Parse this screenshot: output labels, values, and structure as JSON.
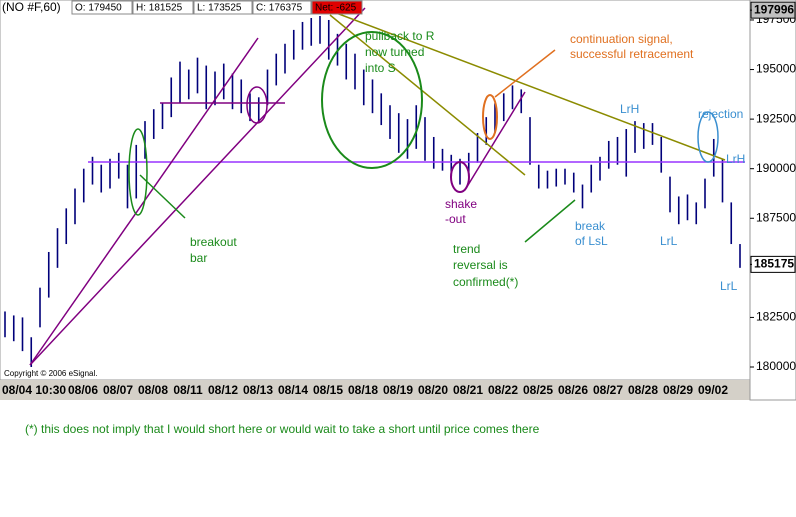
{
  "header": {
    "symbol": "(NO #F,60)",
    "open": "O: 179450",
    "high": "H: 181525",
    "low": "L: 173525",
    "close": "C: 176375",
    "net": "Net: -625"
  },
  "chart_data": {
    "type": "ohlc",
    "categories": [
      "08/04 10:30",
      null,
      null,
      null,
      null,
      null,
      null,
      null,
      "08/06",
      null,
      null,
      null,
      "08/07",
      null,
      null,
      null,
      "08/08",
      null,
      null,
      null,
      "08/11",
      null,
      null,
      null,
      "08/12",
      null,
      null,
      null,
      "08/13",
      null,
      null,
      null,
      "08/14",
      null,
      null,
      null,
      "08/15",
      null,
      null,
      null,
      "08/18",
      null,
      null,
      null,
      "08/19",
      null,
      null,
      null,
      "08/20",
      null,
      null,
      null,
      "08/21",
      null,
      null,
      null,
      "08/22",
      null,
      null,
      null,
      "08/25",
      null,
      null,
      null,
      "08/26",
      null,
      null,
      null,
      "08/27",
      null,
      null,
      null,
      "08/28",
      null,
      null,
      null,
      "08/29",
      null,
      null,
      null,
      "09/02",
      null,
      null,
      null,
      null
    ],
    "high": [
      182800,
      182600,
      182500,
      181500,
      184000,
      185800,
      187000,
      188000,
      189000,
      190000,
      190600,
      190200,
      190500,
      190800,
      190200,
      191200,
      192400,
      193000,
      193300,
      194600,
      195400,
      195000,
      195600,
      195200,
      194900,
      195300,
      194800,
      194500,
      193800,
      193600,
      195000,
      195800,
      196300,
      197000,
      197400,
      197600,
      197700,
      197500,
      196800,
      196300,
      195800,
      195000,
      194500,
      193800,
      193200,
      192800,
      192500,
      193200,
      192600,
      191600,
      191000,
      190700,
      190500,
      190800,
      191800,
      192600,
      193300,
      193800,
      194200,
      194000,
      192600,
      190200,
      189900,
      190000,
      190000,
      189800,
      189200,
      190200,
      190600,
      191400,
      191600,
      192000,
      192400,
      192300,
      192300,
      191600,
      189600,
      188600,
      188700,
      188300,
      189500,
      191500,
      190500,
      188300,
      186200
    ],
    "low": [
      181500,
      181300,
      180800,
      180000,
      182000,
      183500,
      185000,
      186200,
      187200,
      188300,
      189200,
      188800,
      189000,
      189500,
      188000,
      188500,
      190500,
      191500,
      192000,
      192600,
      193300,
      193500,
      193800,
      193000,
      193200,
      193500,
      193000,
      192800,
      192400,
      192300,
      193200,
      194200,
      194800,
      195500,
      196000,
      196200,
      196300,
      195500,
      195200,
      194500,
      194000,
      193200,
      192800,
      192200,
      191500,
      190800,
      190500,
      191000,
      190400,
      190000,
      189900,
      189600,
      189200,
      189600,
      190300,
      191200,
      191800,
      192400,
      193000,
      192800,
      190200,
      189000,
      189000,
      189100,
      189200,
      188800,
      188000,
      188800,
      189400,
      190000,
      190200,
      189600,
      190800,
      191000,
      191200,
      189800,
      187800,
      187200,
      187400,
      187200,
      188000,
      189600,
      188300,
      186200,
      185000
    ],
    "color": "#00007a",
    "ylim": [
      179344,
      198507
    ],
    "yticks": [
      180000,
      182500,
      187500,
      190000,
      192500,
      195000,
      197500
    ],
    "price_markers": [
      197996,
      185175
    ],
    "copyright": "Copyright © 2006 eSignal."
  },
  "annotations": [
    {
      "lines": [
        "pullback to R",
        "now turned",
        "into S"
      ]
    },
    {
      "lines": [
        "continuation signal,",
        "successful retracement"
      ]
    },
    {
      "lines": [
        "breakout",
        "bar"
      ]
    },
    {
      "lines": [
        "shake",
        "-out"
      ]
    },
    {
      "lines": [
        "trend",
        "reversal is",
        "confirmed(*)"
      ]
    },
    {
      "lines": [
        "break",
        "of LsL"
      ]
    },
    {
      "lines": [
        "LrH"
      ]
    },
    {
      "lines": [
        "rejection"
      ]
    },
    {
      "lines": [
        "LrH"
      ]
    },
    {
      "lines": [
        "LrL"
      ]
    },
    {
      "lines": [
        "LrL"
      ]
    }
  ],
  "footnote": "(*) this does not imply that I would short here or would wait to take a short until price comes there"
}
